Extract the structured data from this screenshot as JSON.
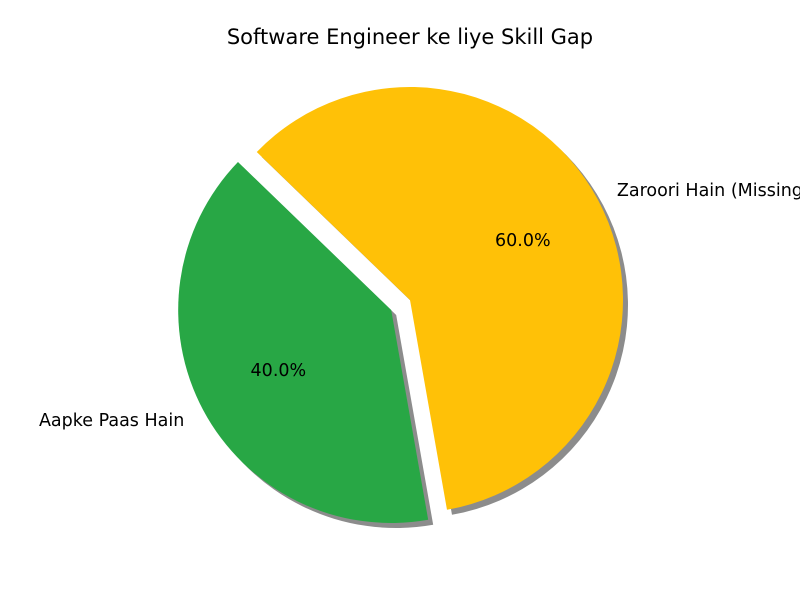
{
  "chart_data": {
    "type": "pie",
    "title": "Software Engineer ke liye Skill Gap",
    "categories": [
      "Aapke Paas Hain",
      "Zaroori Hain (Missing)"
    ],
    "values": [
      40.0,
      60.0
    ],
    "percent_labels": [
      "40.0%",
      "60.0%"
    ],
    "colors": [
      "#28a745",
      "#ffc107"
    ],
    "exploded": [
      true,
      false
    ],
    "shadow": true,
    "start_angle_deg": 136,
    "legend": "none"
  }
}
